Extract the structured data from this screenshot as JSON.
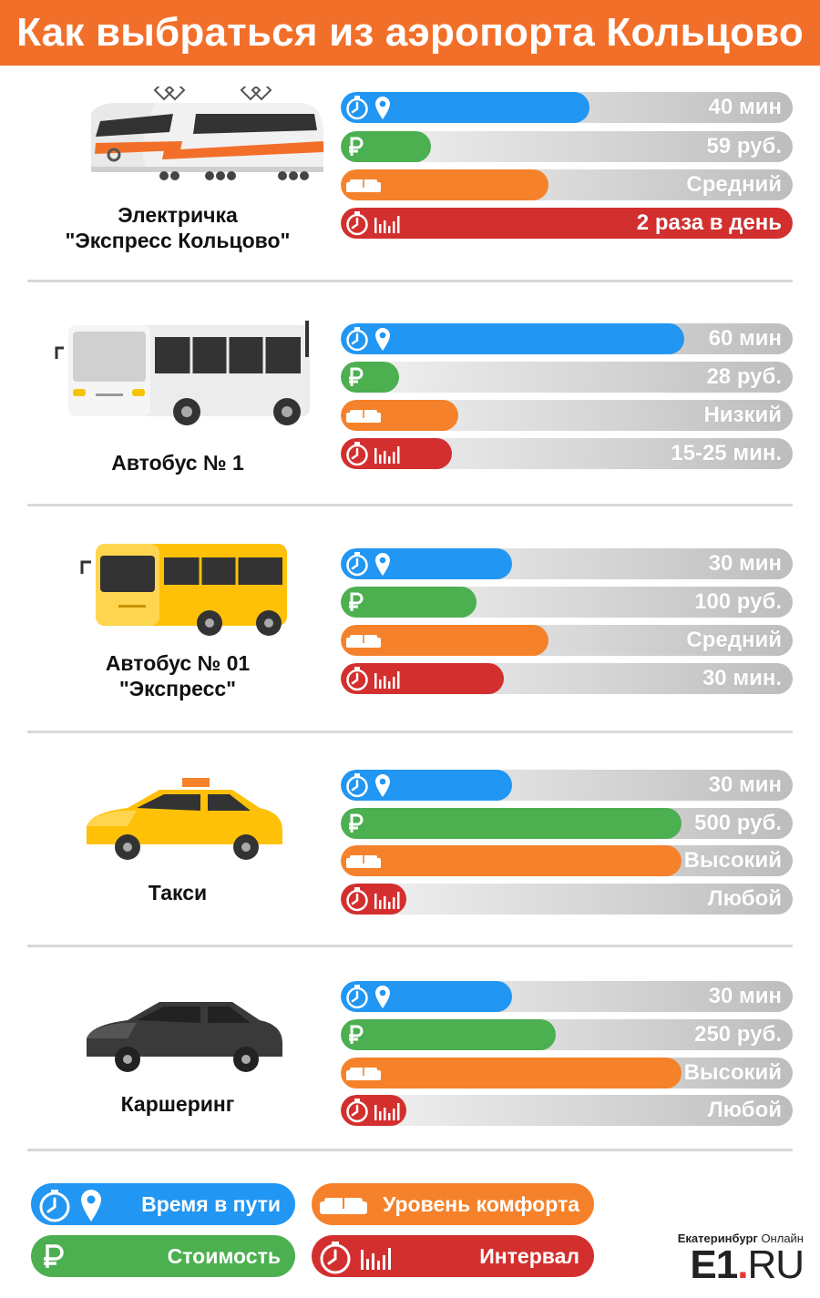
{
  "title": "Как выбраться из аэропорта Кольцово",
  "colors": {
    "header": "#f26f2a",
    "time": "#2196f3",
    "cost": "#4caf50",
    "comfort": "#f5822a",
    "interval": "#d32f2f"
  },
  "transports": [
    {
      "name": "Электричка\n\"Экспресс Кольцово\"",
      "icon": "train-icon",
      "bars": [
        {
          "type": "time",
          "label": "40 мин",
          "fill": 0.55
        },
        {
          "type": "cost",
          "label": "59 руб.",
          "fill": 0.2
        },
        {
          "type": "comfort",
          "label": "Средний",
          "fill": 0.46
        },
        {
          "type": "interval",
          "label": "2 раза в день",
          "fill": 1.0
        }
      ]
    },
    {
      "name": "Автобус № 1",
      "icon": "bus-white-icon",
      "bars": [
        {
          "type": "time",
          "label": "60 мин",
          "fill": 0.76
        },
        {
          "type": "cost",
          "label": "28 руб.",
          "fill": 0.13
        },
        {
          "type": "comfort",
          "label": "Низкий",
          "fill": 0.26
        },
        {
          "type": "interval",
          "label": "15-25 мин.",
          "fill": 0.245
        }
      ]
    },
    {
      "name": "Автобус № 01\n\"Экспресс\"",
      "icon": "bus-yellow-icon",
      "bars": [
        {
          "type": "time",
          "label": "30 мин",
          "fill": 0.38
        },
        {
          "type": "cost",
          "label": "100 руб.",
          "fill": 0.3
        },
        {
          "type": "comfort",
          "label": "Средний",
          "fill": 0.46
        },
        {
          "type": "interval",
          "label": "30 мин.",
          "fill": 0.36
        }
      ]
    },
    {
      "name": "Такси",
      "icon": "taxi-icon",
      "bars": [
        {
          "type": "time",
          "label": "30 мин",
          "fill": 0.38
        },
        {
          "type": "cost",
          "label": "500 руб.",
          "fill": 0.755
        },
        {
          "type": "comfort",
          "label": "Высокий",
          "fill": 0.755
        },
        {
          "type": "interval",
          "label": "Любой",
          "fill": 0.145
        }
      ]
    },
    {
      "name": "Каршеринг",
      "icon": "car-icon",
      "bars": [
        {
          "type": "time",
          "label": "30 мин",
          "fill": 0.38
        },
        {
          "type": "cost",
          "label": "250 руб.",
          "fill": 0.475
        },
        {
          "type": "comfort",
          "label": "Высокий",
          "fill": 0.755
        },
        {
          "type": "interval",
          "label": "Любой",
          "fill": 0.145
        }
      ]
    }
  ],
  "legend": {
    "time": "Время в пути",
    "comfort": "Уровень комфорта",
    "cost": "Стоимость",
    "interval": "Интервал"
  },
  "brand": {
    "city": "Екатеринбург",
    "online": "Онлайн",
    "e1": "E1",
    "dot": ".",
    "ru": "RU"
  }
}
